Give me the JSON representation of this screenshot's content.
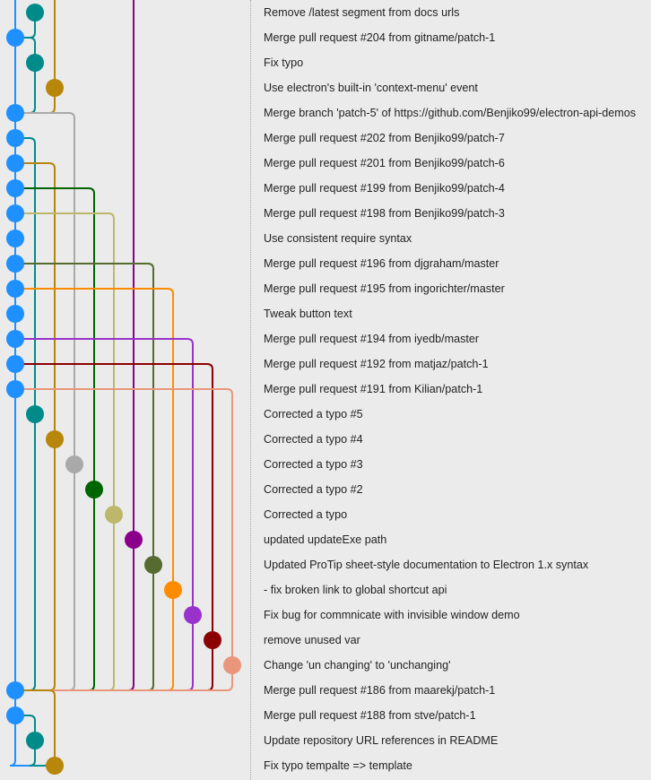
{
  "graph": {
    "lane_colors": [
      "#1e90ff",
      "#008b8b",
      "#b8860b",
      "#a9a9a9",
      "#006400",
      "#bdb76b",
      "#8b008b",
      "#556b2f",
      "#ff8c00",
      "#9932cc",
      "#8b0000",
      "#e9967a"
    ]
  },
  "commits": [
    {
      "message": "Remove /latest segment from docs urls",
      "lane": 1
    },
    {
      "message": "Merge pull request #204 from gitname/patch-1",
      "lane": 0
    },
    {
      "message": "Fix typo",
      "lane": 1
    },
    {
      "message": "Use electron's built-in 'context-menu' event",
      "lane": 2
    },
    {
      "message": "Merge branch 'patch-5' of https://github.com/Benjiko99/electron-api-demos",
      "lane": 0
    },
    {
      "message": "Merge pull request #202 from Benjiko99/patch-7",
      "lane": 0
    },
    {
      "message": "Merge pull request #201 from Benjiko99/patch-6",
      "lane": 0
    },
    {
      "message": "Merge pull request #199 from Benjiko99/patch-4",
      "lane": 0
    },
    {
      "message": "Merge pull request #198 from Benjiko99/patch-3",
      "lane": 0
    },
    {
      "message": "Use consistent require syntax",
      "lane": 0
    },
    {
      "message": "Merge pull request #196 from djgraham/master",
      "lane": 0
    },
    {
      "message": "Merge pull request #195 from ingorichter/master",
      "lane": 0
    },
    {
      "message": "Tweak button text",
      "lane": 0
    },
    {
      "message": "Merge pull request #194 from iyedb/master",
      "lane": 0
    },
    {
      "message": "Merge pull request #192 from matjaz/patch-1",
      "lane": 0
    },
    {
      "message": "Merge pull request #191 from Kilian/patch-1",
      "lane": 0
    },
    {
      "message": "Corrected a typo #5",
      "lane": 1
    },
    {
      "message": "Corrected a typo #4",
      "lane": 2
    },
    {
      "message": "Corrected a typo #3",
      "lane": 3
    },
    {
      "message": "Corrected a typo #2",
      "lane": 4
    },
    {
      "message": "Corrected a typo",
      "lane": 5
    },
    {
      "message": "updated updateExe path",
      "lane": 6
    },
    {
      "message": "Updated ProTip sheet-style documentation to Electron 1.x syntax",
      "lane": 7
    },
    {
      "message": "- fix broken link to global shortcut api",
      "lane": 8
    },
    {
      "message": "Fix bug for commnicate with invisible window demo",
      "lane": 9
    },
    {
      "message": "remove unused var",
      "lane": 10
    },
    {
      "message": "Change 'un changing' to 'unchanging'",
      "lane": 11
    },
    {
      "message": "Merge pull request #186 from maarekj/patch-1",
      "lane": 0
    },
    {
      "message": "Merge pull request #188 from stve/patch-1",
      "lane": 0
    },
    {
      "message": "Update repository URL references in README",
      "lane": 1
    },
    {
      "message": "Fix typo tempalte => template",
      "lane": 2
    }
  ],
  "edges": [
    {
      "from": 0,
      "to": 1,
      "lane": 1
    },
    {
      "from": 1,
      "to": 4,
      "lane": 0
    },
    {
      "from": 1,
      "to": 2,
      "lane": 1
    },
    {
      "from": 2,
      "to": 4,
      "lane": 1
    },
    {
      "from": 3,
      "to": 4,
      "lane": 2
    },
    {
      "from": 4,
      "to": 5,
      "lane": 0
    },
    {
      "from": 5,
      "to": 6,
      "lane": 0
    },
    {
      "from": 6,
      "to": 7,
      "lane": 0
    },
    {
      "from": 7,
      "to": 8,
      "lane": 0
    },
    {
      "from": 8,
      "to": 9,
      "lane": 0
    },
    {
      "from": 9,
      "to": 10,
      "lane": 0
    },
    {
      "from": 10,
      "to": 11,
      "lane": 0
    },
    {
      "from": 11,
      "to": 12,
      "lane": 0
    },
    {
      "from": 12,
      "to": 13,
      "lane": 0
    },
    {
      "from": 13,
      "to": 14,
      "lane": 0
    },
    {
      "from": 14,
      "to": 15,
      "lane": 0
    },
    {
      "from": 15,
      "to": 27,
      "lane": 0
    },
    {
      "from": 4,
      "to": 18,
      "lane": 3
    },
    {
      "from": 5,
      "to": 16,
      "lane": 1
    },
    {
      "from": 6,
      "to": 17,
      "lane": 2
    },
    {
      "from": 7,
      "to": 19,
      "lane": 4
    },
    {
      "from": 8,
      "to": 20,
      "lane": 5
    },
    {
      "from": 10,
      "to": 22,
      "lane": 7
    },
    {
      "from": 11,
      "to": 23,
      "lane": 8
    },
    {
      "from": 13,
      "to": 24,
      "lane": 9
    },
    {
      "from": 14,
      "to": 25,
      "lane": 10
    },
    {
      "from": 15,
      "to": 26,
      "lane": 11
    },
    {
      "from": 16,
      "to": 27,
      "lane": 1
    },
    {
      "from": 17,
      "to": 27,
      "lane": 2
    },
    {
      "from": 18,
      "to": 27,
      "lane": 3
    },
    {
      "from": 19,
      "to": 27,
      "lane": 4
    },
    {
      "from": 20,
      "to": 27,
      "lane": 5
    },
    {
      "from": 21,
      "to": 27,
      "lane": 6
    },
    {
      "from": 22,
      "to": 27,
      "lane": 7
    },
    {
      "from": 23,
      "to": 27,
      "lane": 8
    },
    {
      "from": 24,
      "to": 27,
      "lane": 9
    },
    {
      "from": 25,
      "to": 27,
      "lane": 10
    },
    {
      "from": 26,
      "to": 27,
      "lane": 11
    },
    {
      "from": 27,
      "to": 28,
      "lane": 0
    },
    {
      "from": 28,
      "to": 30,
      "lane": 0
    },
    {
      "from": 28,
      "to": 29,
      "lane": 1
    },
    {
      "from": 29,
      "to": 30,
      "lane": 1
    },
    {
      "from": 27,
      "to": 30,
      "lane": 2
    }
  ],
  "offscreen_lines": [
    {
      "lane": 6,
      "to": 21
    },
    {
      "lane": 0,
      "to": 1
    },
    {
      "lane": 2,
      "to": 3
    }
  ]
}
